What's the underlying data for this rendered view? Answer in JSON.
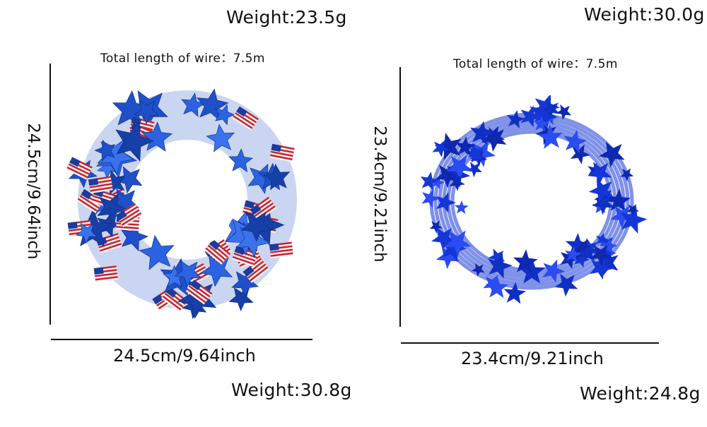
{
  "left": {
    "weight_top": "Weight:23.5g",
    "wire_label": "Total length of wire：7.5m",
    "height_label": "24.5cm/9.64inch",
    "width_label": "24.5cm/9.64inch",
    "weight_bottom": "Weight:30.8g"
  },
  "right": {
    "weight_top": "Weight:30.0g",
    "wire_label": "Total length of wire：7.5m",
    "height_label": "23.4cm/9.21inch",
    "width_label": "23.4cm/9.21inch",
    "weight_bottom": "Weight:24.8g"
  },
  "colors": {
    "star_blue": "#1f4fc9",
    "flag_red": "#c8242c",
    "royal_blue": "#1536d6"
  }
}
